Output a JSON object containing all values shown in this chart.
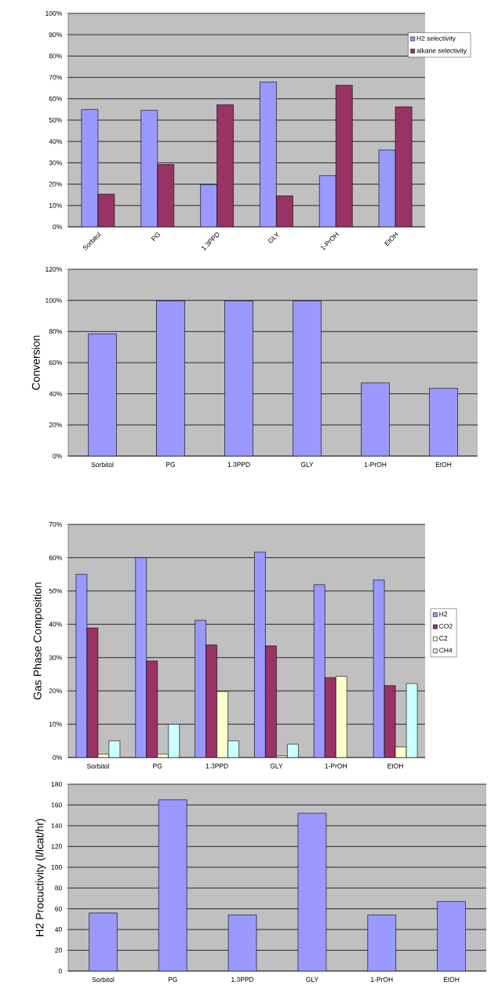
{
  "chart_data": [
    {
      "type": "bar",
      "categories": [
        "Sorbitol",
        "PG",
        "1.3PPD",
        "GLY",
        "1-PrOH",
        "EtOH"
      ],
      "series": [
        {
          "name": "H2 selectivity",
          "color": "#9999ff",
          "values": [
            55,
            54.6,
            19.8,
            67.8,
            24,
            36
          ]
        },
        {
          "name": "alkane selectivity",
          "color": "#993366",
          "values": [
            15.3,
            29.2,
            57.2,
            14.5,
            66.4,
            56.2
          ]
        }
      ],
      "ylim": [
        0,
        100
      ],
      "yticks": [
        {
          "value": 0,
          "label": "0%"
        },
        {
          "value": 10,
          "label": "10%"
        },
        {
          "value": 20,
          "label": "20%"
        },
        {
          "value": 30,
          "label": "30%"
        },
        {
          "value": 40,
          "label": "40%"
        },
        {
          "value": 50,
          "label": "50%"
        },
        {
          "value": 60,
          "label": "60%"
        },
        {
          "value": 70,
          "label": "70%"
        },
        {
          "value": 80,
          "label": "80%"
        },
        {
          "value": 90,
          "label": "90%"
        },
        {
          "value": 100,
          "label": "100%"
        }
      ],
      "grid": "y",
      "legend": "top right"
    },
    {
      "type": "bar",
      "ylabel": "Conversion",
      "categories": [
        "Sorbitol",
        "PG",
        "1.3PPD",
        "GLY",
        "1-PrOH",
        "EtOH"
      ],
      "values": [
        78.5,
        99.7,
        99.7,
        99.7,
        47,
        43.5
      ],
      "color": "#9999ff",
      "ylim": [
        0,
        120
      ],
      "yticks": [
        {
          "value": 0,
          "label": "0%"
        },
        {
          "value": 20,
          "label": "20%"
        },
        {
          "value": 40,
          "label": "40%"
        },
        {
          "value": 60,
          "label": "60%"
        },
        {
          "value": 80,
          "label": "80%"
        },
        {
          "value": 100,
          "label": "100%"
        },
        {
          "value": 120,
          "label": "120%"
        }
      ],
      "grid": "y"
    },
    {
      "type": "bar",
      "ylabel": "Gas Phase Composition",
      "categories": [
        "Sorbitol",
        "PG",
        "1.3PPD",
        "GLY",
        "1-PrOH",
        "EtOH"
      ],
      "series": [
        {
          "name": "H2",
          "color": "#9999ff",
          "values": [
            55,
            60,
            41.2,
            61.7,
            51.9,
            53.3
          ]
        },
        {
          "name": "CO2",
          "color": "#993366",
          "values": [
            38.9,
            29,
            33.8,
            33.5,
            24,
            21.6
          ]
        },
        {
          "name": "C2",
          "color": "#ffffcc",
          "values": [
            1,
            1,
            19.8,
            0.5,
            24.4,
            3.2
          ]
        },
        {
          "name": "CH4",
          "color": "#ccffff",
          "values": [
            5,
            10,
            5,
            4,
            null,
            22.2
          ]
        }
      ],
      "ylim": [
        0,
        70
      ],
      "yticks": [
        {
          "value": 0,
          "label": "0%"
        },
        {
          "value": 10,
          "label": "10%"
        },
        {
          "value": 20,
          "label": "20%"
        },
        {
          "value": 30,
          "label": "30%"
        },
        {
          "value": 40,
          "label": "40%"
        },
        {
          "value": 50,
          "label": "50%"
        },
        {
          "value": 60,
          "label": "60%"
        },
        {
          "value": 70,
          "label": "70%"
        }
      ],
      "grid": "y",
      "legend": "right"
    },
    {
      "type": "bar",
      "ylabel": "H2 Procuctivity (l/lcat/hr)",
      "categories": [
        "Sorbitol",
        "PG",
        "1.3PPD",
        "GLY",
        "1-PrOH",
        "EtOH"
      ],
      "values": [
        56,
        165,
        54,
        152,
        54,
        67
      ],
      "color": "#9999ff",
      "ylim": [
        0,
        180
      ],
      "yticks": [
        0,
        20,
        40,
        60,
        80,
        100,
        120,
        140,
        160,
        180
      ],
      "grid": "y"
    }
  ]
}
